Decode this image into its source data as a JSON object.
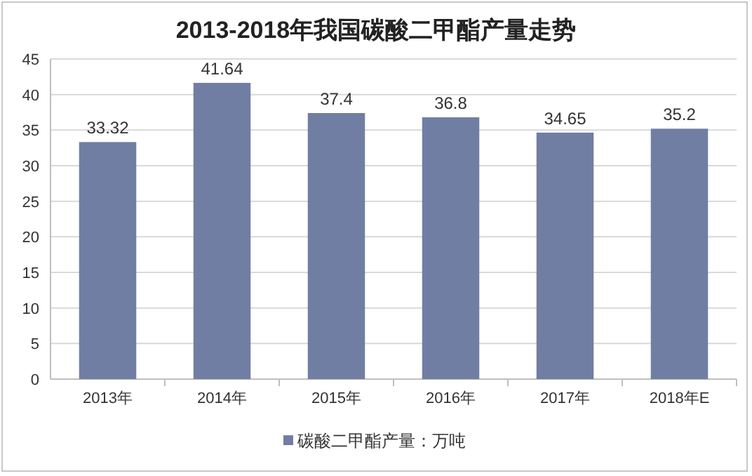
{
  "chart_data": {
    "type": "bar",
    "title": "2013-2018年我国碳酸二甲酯产量走势",
    "categories": [
      "2013年",
      "2014年",
      "2015年",
      "2016年",
      "2017年",
      "2018年E"
    ],
    "series": [
      {
        "name": "碳酸二甲酯产量：万吨",
        "color": "#717ea3",
        "values": [
          33.32,
          41.64,
          37.4,
          36.8,
          34.65,
          35.2
        ]
      }
    ],
    "ylim": [
      0,
      45
    ],
    "yticks": [
      0,
      5,
      10,
      15,
      20,
      25,
      30,
      35,
      40,
      45
    ],
    "grid": "y",
    "legend": "bottom",
    "data_labels": true
  }
}
